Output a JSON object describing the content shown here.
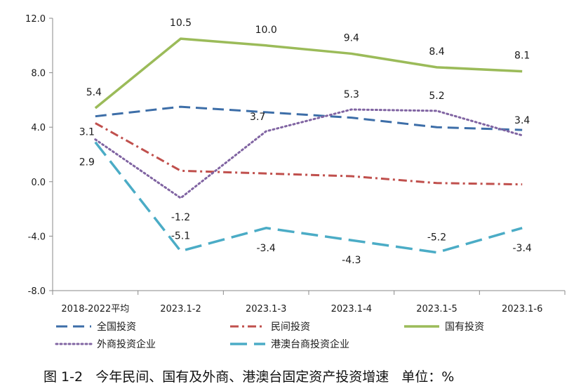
{
  "chart_data": {
    "type": "line",
    "categories": [
      "2018-2022平均",
      "2023.1-2",
      "2023.1-3",
      "2023.1-4",
      "2023.1-5",
      "2023.1-6"
    ],
    "y_ticks": [
      "12.0",
      "8.0",
      "4.0",
      "0.0",
      "-4.0",
      "-8.0"
    ],
    "ylim": [
      -8,
      12
    ],
    "grid": false,
    "legend_position": "bottom",
    "series": [
      {
        "name": "全国投资",
        "values": [
          4.8,
          5.5,
          5.1,
          4.7,
          4.0,
          3.8
        ],
        "color": "#3d6ea8",
        "dash": "16 8",
        "width": 3,
        "labels": []
      },
      {
        "name": "民间投资",
        "values": [
          4.3,
          0.8,
          0.6,
          0.4,
          -0.1,
          -0.2
        ],
        "color": "#c0504d",
        "dash": "12 5 3 5",
        "width": 3,
        "labels": []
      },
      {
        "name": "国有投资",
        "values": [
          5.4,
          10.5,
          10.0,
          9.4,
          8.4,
          8.1
        ],
        "color": "#9bbb59",
        "dash": "",
        "width": 3.5,
        "labels": [
          "5.4",
          "10.5",
          "10.0",
          "9.4",
          "8.4",
          "8.1"
        ]
      },
      {
        "name": "外商投资企业",
        "values": [
          3.1,
          -1.2,
          3.7,
          5.3,
          5.2,
          3.4
        ],
        "color": "#8064a2",
        "dash": "2 4",
        "width": 3,
        "labels": [
          "3.1",
          "-1.2",
          "3.7",
          "5.3",
          "5.2",
          "3.4"
        ]
      },
      {
        "name": "港澳台商投资企业",
        "values": [
          2.9,
          -5.1,
          -3.4,
          -4.3,
          -5.2,
          -3.4
        ],
        "color": "#4bacc6",
        "dash": "24 10",
        "width": 3.5,
        "labels": [
          "2.9",
          "-5.1",
          "-3.4",
          "-4.3",
          "-5.2",
          "-3.4"
        ]
      }
    ]
  },
  "caption": "图 1-2   今年民间、国有及外商、港澳台固定资产投资增速   单位：%"
}
